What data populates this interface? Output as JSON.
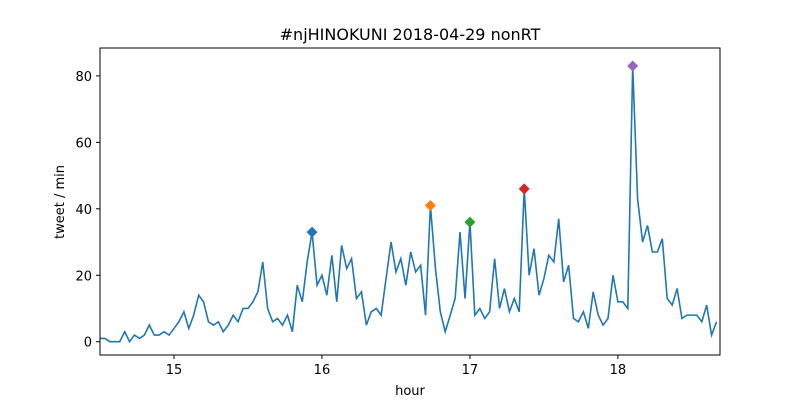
{
  "chart_data": {
    "type": "line",
    "title": "#njHINOKUNI 2018-04-29 nonRT",
    "xlabel": "hour",
    "ylabel": "tweet / min",
    "x": [
      14.5,
      14.533,
      14.567,
      14.6,
      14.633,
      14.667,
      14.7,
      14.733,
      14.767,
      14.8,
      14.833,
      14.867,
      14.9,
      14.933,
      14.967,
      15,
      15.033,
      15.067,
      15.1,
      15.133,
      15.167,
      15.2,
      15.233,
      15.267,
      15.3,
      15.333,
      15.367,
      15.4,
      15.433,
      15.467,
      15.5,
      15.533,
      15.567,
      15.6,
      15.633,
      15.667,
      15.7,
      15.733,
      15.767,
      15.8,
      15.833,
      15.867,
      15.9,
      15.933,
      15.967,
      16,
      16.033,
      16.067,
      16.1,
      16.133,
      16.167,
      16.2,
      16.233,
      16.267,
      16.3,
      16.333,
      16.367,
      16.4,
      16.433,
      16.467,
      16.5,
      16.533,
      16.567,
      16.6,
      16.633,
      16.667,
      16.7,
      16.733,
      16.767,
      16.8,
      16.833,
      16.867,
      16.9,
      16.933,
      16.967,
      17,
      17.033,
      17.067,
      17.1,
      17.133,
      17.167,
      17.2,
      17.233,
      17.267,
      17.3,
      17.333,
      17.367,
      17.4,
      17.433,
      17.467,
      17.5,
      17.533,
      17.567,
      17.6,
      17.633,
      17.667,
      17.7,
      17.733,
      17.767,
      17.8,
      17.833,
      17.867,
      17.9,
      17.933,
      17.967,
      18,
      18.033,
      18.067,
      18.1,
      18.133,
      18.167,
      18.2,
      18.233,
      18.267,
      18.3,
      18.333,
      18.367,
      18.4,
      18.433,
      18.467,
      18.5,
      18.533,
      18.567,
      18.6,
      18.633,
      18.667
    ],
    "series": [
      {
        "color": "#1f77b4",
        "values": [
          1,
          1,
          0,
          0,
          0,
          3,
          0,
          2,
          1,
          2,
          5,
          2,
          2,
          3,
          2,
          4,
          6,
          9,
          4,
          8,
          14,
          12,
          6,
          5,
          6,
          3,
          5,
          8,
          6,
          10,
          10,
          12,
          15,
          24,
          10,
          6,
          7,
          5,
          8,
          3,
          17,
          12,
          24,
          33,
          17,
          20,
          14,
          26,
          12,
          29,
          22,
          25,
          13,
          15,
          5,
          9,
          10,
          8,
          19,
          30,
          21,
          25,
          17,
          27,
          21,
          23,
          8,
          41,
          22,
          9,
          3,
          8,
          13,
          33,
          13,
          36,
          8,
          10,
          7,
          9,
          25,
          10,
          16,
          9,
          13,
          9,
          46,
          20,
          28,
          14,
          19,
          26,
          24,
          37,
          18,
          23,
          7,
          6,
          9,
          4,
          15,
          8,
          5,
          7,
          20,
          12,
          12,
          10,
          83,
          43,
          30,
          35,
          27,
          27,
          31,
          13,
          11,
          16,
          7,
          8,
          8,
          8,
          6,
          11,
          2,
          6
        ]
      }
    ],
    "markers": {
      "x": [
        15.933,
        16.733,
        17,
        17.367,
        18.1
      ],
      "values": [
        33,
        41,
        36,
        46,
        83
      ],
      "colors": [
        "#1f77b4",
        "#ff7f0e",
        "#2ca02c",
        "#d62728",
        "#9467bd"
      ]
    },
    "xlim": [
      14.5,
      18.69
    ],
    "ylim": [
      -4,
      88.4
    ],
    "xticks": [
      15,
      16,
      17,
      18
    ],
    "yticks": [
      0,
      20,
      40,
      60,
      80
    ],
    "grid": false
  }
}
